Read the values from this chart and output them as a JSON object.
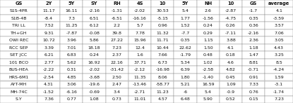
{
  "col_headers": [
    "GS",
    "2Y",
    "5Y",
    "SY",
    "RH",
    "4S",
    "10",
    "5Y",
    "NH",
    "10",
    "GS",
    "average"
  ],
  "rows": [
    [
      "S1S-4PR",
      "11.17",
      "16.11",
      "-2.16",
      "-1.31",
      "-2.02",
      "30.53",
      "5.4",
      "2.6",
      "-2.87",
      "-1.7",
      "4.1"
    ],
    [
      "S1B-4B",
      "-8.4",
      "7.3",
      "6.51",
      "-6.51",
      "-16.16",
      "-5.15",
      "1.77",
      "-1.56",
      "-4.75",
      "0.35",
      "-3.59"
    ],
    [
      "TRI LL",
      "7.52",
      "11.25",
      "6.12",
      "2.2",
      "5.7",
      "0.96",
      "1.52",
      "0.24",
      "0.26",
      "0.36",
      "3.57"
    ],
    [
      "TH+GH",
      "9.31",
      "-7.87",
      "-0.08",
      "39.8",
      "7.78",
      "11.32",
      "-7.7",
      "0.29",
      "-7.11",
      "-2.16",
      "7.06"
    ],
    [
      "OWI REC",
      "10.72",
      "3.96",
      "5.86",
      "27.22",
      "15.96",
      "11.71",
      "0.35",
      "1.15",
      "3.88",
      "2.36",
      "3.05"
    ],
    [
      "RCC SEP",
      "3.39",
      "7.01",
      "18.18",
      "7.23",
      "12.4",
      "10.44",
      "22.62",
      "1.50",
      "4.1",
      "1.18",
      "4.43"
    ],
    [
      "SET JCC",
      "6.21",
      "6.83",
      "0.24",
      "2.37",
      "1.6",
      "7.66",
      "-1.79",
      "0.48",
      "0.18",
      "1.47",
      "3.25"
    ],
    [
      "101 BCO",
      "2.77",
      "5.62",
      "16.92",
      "22.16",
      "37.71",
      "6.73",
      "5.34",
      "1.02",
      "4.6",
      "8.81",
      "8.5"
    ],
    [
      "BUS-HEA",
      "-2.22",
      "0.31",
      "-2.02",
      "-31.42",
      "-2.12",
      "-16.98",
      "6.39",
      "-2.58",
      "4.82",
      "-0.71",
      "-4.24"
    ],
    [
      "HRS-6M1",
      "-2.54",
      "4.85",
      "-3.68",
      "2.50",
      "11.35",
      "8.06",
      "1.80",
      "-1.40",
      "0.45",
      "0.91",
      "1.59"
    ],
    [
      "AYT-MH",
      "4.31",
      "3.06",
      "-19.6",
      "2.47",
      "-13.46",
      "-58.77",
      "5.21",
      "16.59",
      "1.09",
      "7.33",
      "-3.1"
    ],
    [
      "MH-74C",
      "-1.52",
      "-6.16",
      "-0.69",
      "3.4",
      "-2.71",
      "11.23",
      "-6",
      "5.4",
      "-0.9",
      "0.76",
      "-1.74"
    ],
    [
      "S.Y",
      "7.36",
      "0.77",
      "1.08",
      "0.73",
      "11.01",
      "4.57",
      "6.48",
      "5.90",
      "0.52",
      "0.15",
      "7.23"
    ]
  ],
  "font_size": 4.5,
  "header_font_size": 4.8,
  "bg_color": "#ffffff",
  "line_color": "#888888",
  "text_color": "#111111",
  "figsize": [
    4.15,
    1.47
  ],
  "dpi": 100
}
